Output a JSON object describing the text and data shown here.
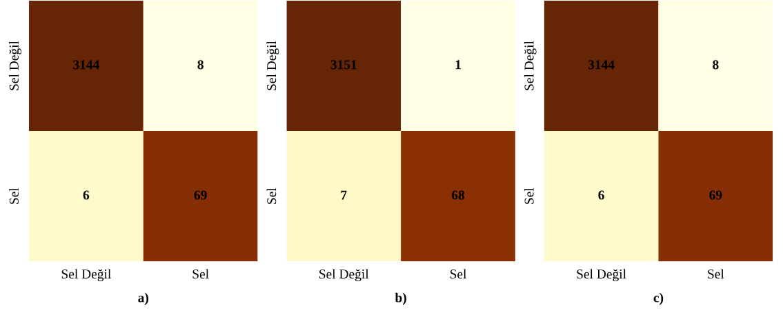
{
  "chart_data": [
    {
      "type": "heatmap",
      "xlabel": "a)",
      "categories": [
        "Sel Değil",
        "Sel"
      ],
      "y_categories": [
        "Sel Değil",
        "Sel"
      ],
      "cells": [
        [
          3144,
          8
        ],
        [
          6,
          69
        ]
      ],
      "data_labels": true
    },
    {
      "type": "heatmap",
      "xlabel": "b)",
      "categories": [
        "Sel Değil",
        "Sel"
      ],
      "y_categories": [
        "Sel Değil",
        "Sel"
      ],
      "cells": [
        [
          3151,
          1
        ],
        [
          7,
          68
        ]
      ],
      "data_labels": true
    },
    {
      "type": "heatmap",
      "xlabel": "c)",
      "categories": [
        "Sel Değil",
        "Sel"
      ],
      "y_categories": [
        "Sel Değil",
        "Sel"
      ],
      "cells": [
        [
          3144,
          8
        ],
        [
          6,
          69
        ]
      ],
      "data_labels": true
    }
  ]
}
